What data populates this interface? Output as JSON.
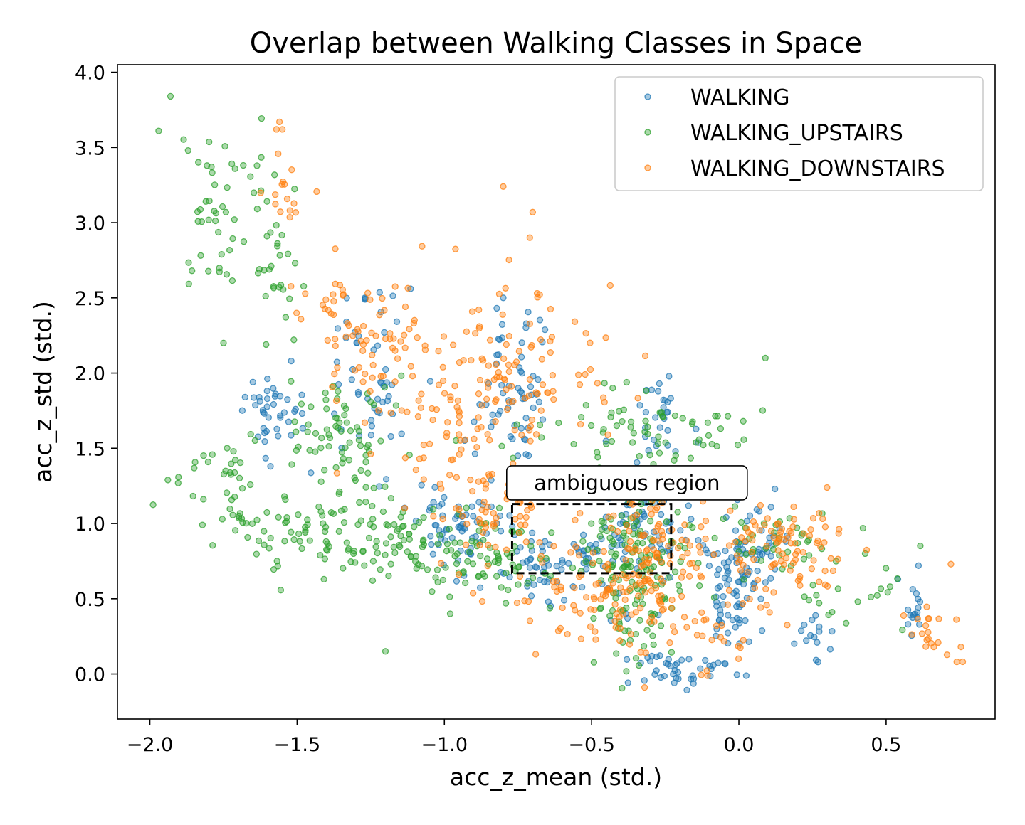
{
  "chart_data": {
    "type": "scatter",
    "title": "Overlap between Walking Classes in Space",
    "xlabel": "acc_z_mean (std.)",
    "ylabel": "acc_z_std (std.)",
    "xlim": [
      -2.11,
      0.87
    ],
    "ylim": [
      -0.3,
      4.05
    ],
    "xticks": [
      -2.0,
      -1.5,
      -1.0,
      -0.5,
      0.0,
      0.5
    ],
    "xtick_labels": [
      "−2.0",
      "−1.5",
      "−1.0",
      "−0.5",
      "0.0",
      "0.5"
    ],
    "yticks": [
      0.0,
      0.5,
      1.0,
      1.5,
      2.0,
      2.5,
      3.0,
      3.5,
      4.0
    ],
    "ytick_labels": [
      "0.0",
      "0.5",
      "1.0",
      "1.5",
      "2.0",
      "2.5",
      "3.0",
      "3.5",
      "4.0"
    ],
    "grid": false,
    "legend_position": "top-right",
    "series": [
      {
        "name": "WALKING",
        "color": "#1f77b4",
        "clusters": [
          {
            "center": [
              -1.57,
              1.7
            ],
            "spread": [
              0.06,
              0.15
            ],
            "n": 40
          },
          {
            "center": [
              -1.25,
              1.95
            ],
            "spread": [
              0.08,
              0.3
            ],
            "n": 50
          },
          {
            "center": [
              -0.95,
              0.98
            ],
            "spread": [
              0.07,
              0.15
            ],
            "n": 60
          },
          {
            "center": [
              -0.75,
              1.9
            ],
            "spread": [
              0.07,
              0.3
            ],
            "n": 60
          },
          {
            "center": [
              -0.65,
              0.75
            ],
            "spread": [
              0.1,
              0.12
            ],
            "n": 60
          },
          {
            "center": [
              -0.35,
              1.0
            ],
            "spread": [
              0.1,
              0.25
            ],
            "n": 90
          },
          {
            "center": [
              -0.25,
              1.7
            ],
            "spread": [
              0.04,
              0.15
            ],
            "n": 25
          },
          {
            "center": [
              -0.2,
              0.05
            ],
            "spread": [
              0.1,
              0.07
            ],
            "n": 40
          },
          {
            "center": [
              -0.02,
              0.45
            ],
            "spread": [
              0.04,
              0.22
            ],
            "n": 60
          },
          {
            "center": [
              0.05,
              0.85
            ],
            "spread": [
              0.07,
              0.15
            ],
            "n": 50
          },
          {
            "center": [
              0.25,
              0.25
            ],
            "spread": [
              0.03,
              0.08
            ],
            "n": 15
          },
          {
            "center": [
              0.6,
              0.42
            ],
            "spread": [
              0.02,
              0.1
            ],
            "n": 15
          }
        ],
        "extra_points": [
          [
            -1.27,
            2.5
          ],
          [
            -1.27,
            2.49
          ],
          [
            -1.52,
            2.08
          ],
          [
            -1.65,
            1.94
          ],
          [
            -0.8,
            2.5
          ],
          [
            0.61,
            0.72
          ],
          [
            0.54,
            0.63
          ],
          [
            -0.27,
            1.93
          ]
        ]
      },
      {
        "name": "WALKING_UPSTAIRS",
        "color": "#2ca02c",
        "clusters": [
          {
            "center": [
              -1.75,
              3.05
            ],
            "spread": [
              0.09,
              0.3
            ],
            "n": 50
          },
          {
            "center": [
              -1.55,
              2.6
            ],
            "spread": [
              0.04,
              0.25
            ],
            "n": 25
          },
          {
            "center": [
              -1.35,
              1.6
            ],
            "spread": [
              0.1,
              0.2
            ],
            "n": 70
          },
          {
            "center": [
              -1.75,
              1.25
            ],
            "spread": [
              0.1,
              0.15
            ],
            "n": 40
          },
          {
            "center": [
              -1.45,
              0.95
            ],
            "spread": [
              0.12,
              0.12
            ],
            "n": 60
          },
          {
            "center": [
              -1.15,
              0.85
            ],
            "spread": [
              0.12,
              0.15
            ],
            "n": 80
          },
          {
            "center": [
              -0.85,
              0.75
            ],
            "spread": [
              0.12,
              0.15
            ],
            "n": 60
          },
          {
            "center": [
              -0.35,
              0.85
            ],
            "spread": [
              0.1,
              0.2
            ],
            "n": 110
          },
          {
            "center": [
              -0.35,
              1.6
            ],
            "spread": [
              0.2,
              0.15
            ],
            "n": 70
          },
          {
            "center": [
              -0.35,
              0.4
            ],
            "spread": [
              0.08,
              0.2
            ],
            "n": 50
          },
          {
            "center": [
              0.15,
              0.85
            ],
            "spread": [
              0.12,
              0.15
            ],
            "n": 40
          },
          {
            "center": [
              0.4,
              0.6
            ],
            "spread": [
              0.1,
              0.15
            ],
            "n": 20
          }
        ],
        "extra_points": [
          [
            -1.93,
            3.84
          ],
          [
            -1.97,
            3.61
          ],
          [
            -1.87,
            3.48
          ],
          [
            -1.75,
            2.2
          ],
          [
            0.09,
            2.1
          ],
          [
            -1.2,
            0.15
          ],
          [
            -0.98,
            0.4
          ]
        ]
      },
      {
        "name": "WALKING_DOWNSTAIRS",
        "color": "#ff7f0e",
        "clusters": [
          {
            "center": [
              -1.55,
              3.2
            ],
            "spread": [
              0.04,
              0.18
            ],
            "n": 15
          },
          {
            "center": [
              -1.4,
              2.45
            ],
            "spread": [
              0.06,
              0.15
            ],
            "n": 20
          },
          {
            "center": [
              -1.2,
              2.2
            ],
            "spread": [
              0.1,
              0.25
            ],
            "n": 60
          },
          {
            "center": [
              -1.0,
              1.6
            ],
            "spread": [
              0.1,
              0.25
            ],
            "n": 60
          },
          {
            "center": [
              -0.8,
              2.0
            ],
            "spread": [
              0.1,
              0.35
            ],
            "n": 80
          },
          {
            "center": [
              -0.8,
              1.0
            ],
            "spread": [
              0.1,
              0.2
            ],
            "n": 60
          },
          {
            "center": [
              -0.45,
              0.5
            ],
            "spread": [
              0.15,
              0.2
            ],
            "n": 90
          },
          {
            "center": [
              -0.3,
              0.85
            ],
            "spread": [
              0.1,
              0.15
            ],
            "n": 90
          },
          {
            "center": [
              0.15,
              0.85
            ],
            "spread": [
              0.1,
              0.15
            ],
            "n": 90
          },
          {
            "center": [
              -0.1,
              0.45
            ],
            "spread": [
              0.15,
              0.2
            ],
            "n": 40
          },
          {
            "center": [
              0.65,
              0.3
            ],
            "spread": [
              0.05,
              0.12
            ],
            "n": 20
          },
          {
            "center": [
              -0.5,
              2.0
            ],
            "spread": [
              0.1,
              0.2
            ],
            "n": 20
          }
        ],
        "extra_points": [
          [
            -1.56,
            3.67
          ],
          [
            -1.57,
            3.62
          ],
          [
            -1.55,
            3.62
          ],
          [
            -0.8,
            3.24
          ],
          [
            -0.7,
            3.07
          ],
          [
            -0.71,
            2.9
          ],
          [
            -0.32,
            -0.09
          ],
          [
            0.74,
            0.08
          ],
          [
            0.72,
            0.73
          ]
        ]
      }
    ],
    "annotations": [
      {
        "text": "ambiguous region",
        "box_x": [
          -0.77,
          -0.23
        ],
        "box_y": [
          0.67,
          1.13
        ],
        "label_at": [
          -0.38,
          1.27
        ]
      }
    ]
  }
}
